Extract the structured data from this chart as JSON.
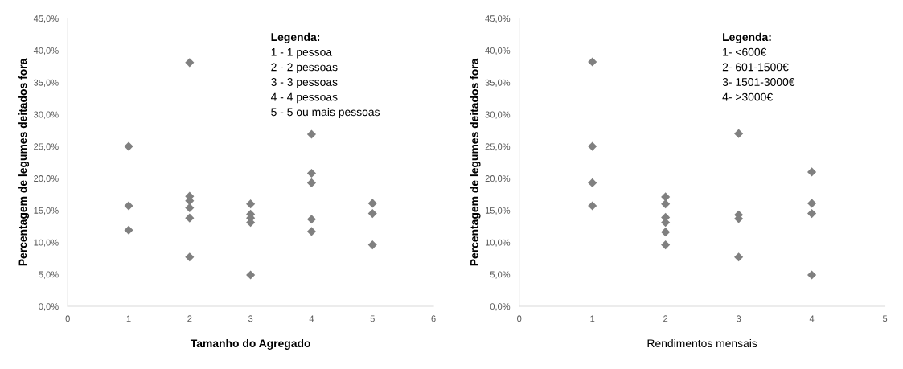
{
  "chart_data": [
    {
      "type": "scatter",
      "xlabel": "Tamanho do Agregado",
      "ylabel": "Percentagem de legumes deitados fora",
      "marker": "diamond",
      "grid": false,
      "legend": false,
      "annotations": [
        "Legenda:",
        "1 - 1 pessoa",
        "2 - 2 pessoas",
        "3 - 3 pessoas",
        "4 - 4 pessoas",
        "5 - 5 ou mais pessoas"
      ],
      "xlim": [
        0,
        6
      ],
      "xticks": [
        0,
        1,
        2,
        3,
        4,
        5,
        6
      ],
      "ylim": [
        0,
        45
      ],
      "yticks": [
        {
          "value": 0,
          "label": "0,0%"
        },
        {
          "value": 5,
          "label": "5,0%"
        },
        {
          "value": 10,
          "label": "10,0%"
        },
        {
          "value": 15,
          "label": "15,0%"
        },
        {
          "value": 20,
          "label": "20,0%"
        },
        {
          "value": 25,
          "label": "25,0%"
        },
        {
          "value": 30,
          "label": "30,0%"
        },
        {
          "value": 35,
          "label": "35,0%"
        },
        {
          "value": 40,
          "label": "40,0%"
        },
        {
          "value": 45,
          "label": "45,0%"
        }
      ],
      "series": [
        {
          "color": "#808080",
          "x": [
            1,
            1,
            1,
            2,
            2,
            2,
            2,
            2,
            2,
            3,
            3,
            3,
            3,
            3,
            4,
            4,
            4,
            4,
            4,
            5,
            5,
            5
          ],
          "values": [
            25.0,
            15.7,
            11.9,
            38.1,
            17.2,
            16.5,
            15.4,
            13.8,
            7.7,
            16.0,
            14.4,
            13.8,
            13.1,
            4.9,
            26.9,
            20.8,
            19.3,
            13.6,
            11.7,
            16.1,
            14.5,
            9.6
          ]
        }
      ]
    },
    {
      "type": "scatter",
      "xlabel": "Rendimentos mensais",
      "ylabel": "Percentagem de legumes deitados fora",
      "marker": "diamond",
      "grid": false,
      "legend": false,
      "annotations": [
        "Legenda:",
        "1- <600€",
        "2- 601-1500€",
        "3- 1501-3000€",
        "4- >3000€"
      ],
      "xlim": [
        0,
        5
      ],
      "xticks": [
        0,
        1,
        2,
        3,
        4,
        5
      ],
      "ylim": [
        0,
        45
      ],
      "yticks": [
        {
          "value": 0,
          "label": "0,0%"
        },
        {
          "value": 5,
          "label": "5,0%"
        },
        {
          "value": 10,
          "label": "10,0%"
        },
        {
          "value": 15,
          "label": "15,0%"
        },
        {
          "value": 20,
          "label": "20,0%"
        },
        {
          "value": 25,
          "label": "25,0%"
        },
        {
          "value": 30,
          "label": "30,0%"
        },
        {
          "value": 35,
          "label": "35,0%"
        },
        {
          "value": 40,
          "label": "40,0%"
        },
        {
          "value": 45,
          "label": "45,0%"
        }
      ],
      "series": [
        {
          "color": "#808080",
          "x": [
            1,
            1,
            1,
            1,
            2,
            2,
            2,
            2,
            2,
            2,
            3,
            3,
            3,
            3,
            4,
            4,
            4,
            4
          ],
          "values": [
            38.2,
            25.0,
            19.3,
            15.7,
            17.1,
            16.0,
            13.9,
            13.1,
            11.6,
            9.6,
            27.0,
            14.3,
            13.7,
            7.7,
            21.0,
            16.1,
            14.5,
            4.9
          ]
        }
      ]
    }
  ]
}
